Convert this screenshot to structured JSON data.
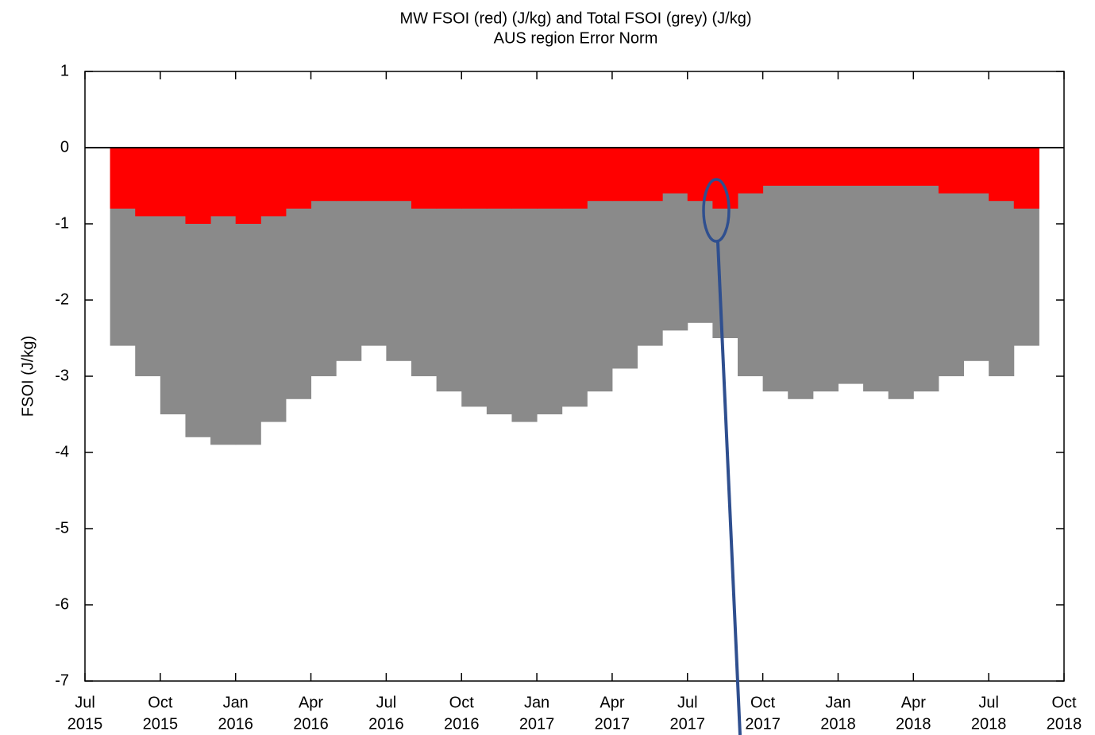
{
  "chart_data": {
    "type": "bar",
    "title": [
      "MW FSOI (red) (J/kg) and Total FSOI (grey) (J/kg)",
      "AUS region Error Norm"
    ],
    "y_label": "FSOI (J/kg)",
    "x": [
      "2015-08",
      "2015-09",
      "2015-10",
      "2015-11",
      "2015-12",
      "2016-01",
      "2016-02",
      "2016-03",
      "2016-04",
      "2016-05",
      "2016-06",
      "2016-07",
      "2016-08",
      "2016-09",
      "2016-10",
      "2016-11",
      "2016-12",
      "2017-01",
      "2017-02",
      "2017-03",
      "2017-04",
      "2017-05",
      "2017-06",
      "2017-07",
      "2017-08",
      "2017-09",
      "2017-10",
      "2017-11",
      "2017-12",
      "2018-01",
      "2018-02",
      "2018-03",
      "2018-04",
      "2018-05",
      "2018-06",
      "2018-07",
      "2018-08"
    ],
    "series": [
      {
        "color": "#8a8a8a",
        "values": [
          -2.6,
          -3.0,
          -3.5,
          -3.8,
          -3.9,
          -3.9,
          -3.6,
          -3.3,
          -3.0,
          -2.8,
          -2.6,
          -2.8,
          -3.0,
          -3.2,
          -3.4,
          -3.5,
          -3.6,
          -3.5,
          -3.4,
          -3.2,
          -2.9,
          -2.6,
          -2.4,
          -2.3,
          -2.5,
          -3.0,
          -3.2,
          -3.3,
          -3.2,
          -3.1,
          -3.2,
          -3.3,
          -3.2,
          -3.0,
          -2.8,
          -3.0,
          -2.6
        ]
      },
      {
        "color": "#ff0000",
        "values": [
          -0.8,
          -0.9,
          -0.9,
          -1.0,
          -0.9,
          -1.0,
          -0.9,
          -0.8,
          -0.7,
          -0.7,
          -0.7,
          -0.7,
          -0.8,
          -0.8,
          -0.8,
          -0.8,
          -0.8,
          -0.8,
          -0.8,
          -0.7,
          -0.7,
          -0.7,
          -0.6,
          -0.7,
          -0.8,
          -0.6,
          -0.5,
          -0.5,
          -0.5,
          -0.5,
          -0.5,
          -0.5,
          -0.5,
          -0.6,
          -0.6,
          -0.7,
          -0.8
        ]
      }
    ],
    "xlim": [
      "2015-07",
      "2018-10"
    ],
    "xticks": [
      {
        "value": "2015-07",
        "label": [
          "Jul",
          "2015"
        ]
      },
      {
        "value": "2015-10",
        "label": [
          "Oct",
          "2015"
        ]
      },
      {
        "value": "2016-01",
        "label": [
          "Jan",
          "2016"
        ]
      },
      {
        "value": "2016-04",
        "label": [
          "Apr",
          "2016"
        ]
      },
      {
        "value": "2016-07",
        "label": [
          "Jul",
          "2016"
        ]
      },
      {
        "value": "2016-10",
        "label": [
          "Oct",
          "2016"
        ]
      },
      {
        "value": "2017-01",
        "label": [
          "Jan",
          "2017"
        ]
      },
      {
        "value": "2017-04",
        "label": [
          "Apr",
          "2017"
        ]
      },
      {
        "value": "2017-07",
        "label": [
          "Jul",
          "2017"
        ]
      },
      {
        "value": "2017-10",
        "label": [
          "Oct",
          "2017"
        ]
      },
      {
        "value": "2018-01",
        "label": [
          "Jan",
          "2018"
        ]
      },
      {
        "value": "2018-04",
        "label": [
          "Apr",
          "2018"
        ]
      },
      {
        "value": "2018-07",
        "label": [
          "Jul",
          "2018"
        ]
      },
      {
        "value": "2018-10",
        "label": [
          "Oct",
          "2018"
        ]
      }
    ],
    "ylim": [
      -7,
      1
    ],
    "yticks": [
      -7,
      -6,
      -5,
      -4,
      -3,
      -2,
      -1,
      0,
      1
    ]
  }
}
